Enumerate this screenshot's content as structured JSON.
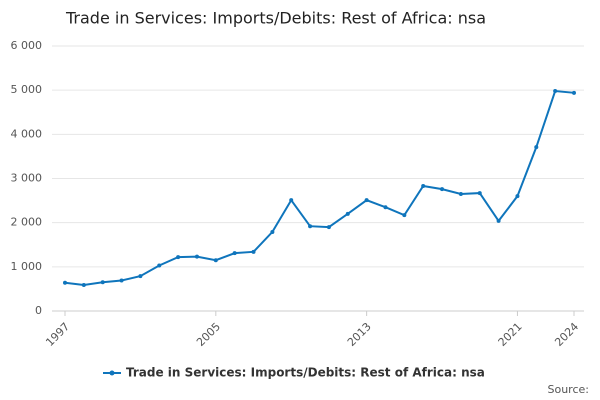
{
  "chart_data": {
    "type": "line",
    "title": "Trade in Services: Imports/Debits: Rest of Africa: nsa",
    "source": "Source:",
    "x": [
      1997,
      1998,
      1999,
      2000,
      2001,
      2002,
      2003,
      2004,
      2005,
      2006,
      2007,
      2008,
      2009,
      2010,
      2011,
      2012,
      2013,
      2014,
      2015,
      2016,
      2017,
      2018,
      2019,
      2020,
      2021,
      2022,
      2023,
      2024
    ],
    "series": [
      {
        "name": "Trade in Services: Imports/Debits: Rest of Africa: nsa",
        "color": "#0f75bc",
        "values": [
          640,
          590,
          650,
          690,
          790,
          1030,
          1220,
          1230,
          1150,
          1310,
          1340,
          1790,
          2510,
          1920,
          1900,
          2200,
          2510,
          2350,
          2170,
          2830,
          2760,
          2650,
          2670,
          2040,
          2600,
          3710,
          4980,
          4940
        ]
      }
    ],
    "xlim": [
      1997,
      2024
    ],
    "xticks": [
      1997,
      2005,
      2013,
      2021,
      2024
    ],
    "ylim": [
      0,
      6000
    ],
    "yticks": [
      0,
      {
        "value": 1000,
        "label": "1 000"
      },
      {
        "value": 2000,
        "label": "2 000"
      },
      {
        "value": 3000,
        "label": "3 000"
      },
      {
        "value": 4000,
        "label": "4 000"
      },
      {
        "value": 5000,
        "label": "5 000"
      },
      {
        "value": 6000,
        "label": "6 000"
      }
    ],
    "grid": true
  }
}
